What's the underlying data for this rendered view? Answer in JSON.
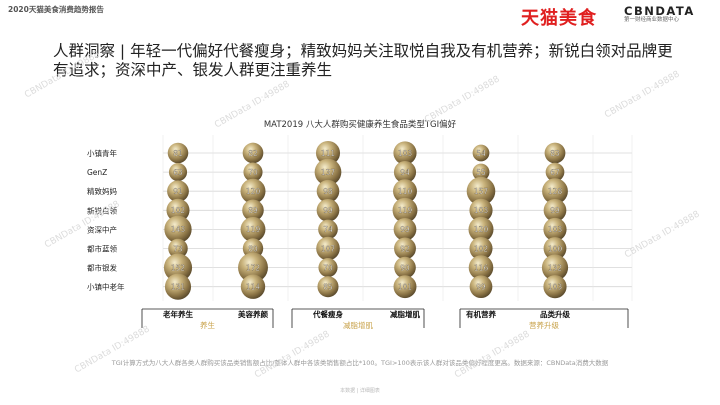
{
  "header": {
    "report_title": "2020天猫美食消费趋势报告",
    "brand_tmall": "天猫美食",
    "brand_cbn": "CBNDATA",
    "brand_cbn_sub": "第一财经商业数据中心"
  },
  "headline": "人群洞察 | 年轻一代偏好代餐瘦身；精致妈妈关注取悦自我及有机营养；新锐白领对品牌更有追求；资深中产、银发人群更注重养生",
  "chart_data": {
    "type": "bubble",
    "title": "MAT2019 八大人群购买健康养生食品类型TGI偏好",
    "categories": [
      "老年养生",
      "美容养颜",
      "代餐瘦身",
      "减脂增肌",
      "有机营养",
      "品类升级"
    ],
    "groups": [
      {
        "label": "养生",
        "categories": [
          "老年养生",
          "美容养颜"
        ]
      },
      {
        "label": "减脂增肌",
        "categories": [
          "代餐瘦身",
          "减脂增肌"
        ]
      },
      {
        "label": "营养升级",
        "categories": [
          "有机营养",
          "品类升级"
        ]
      }
    ],
    "series": [
      {
        "name": "小镇青年",
        "values": [
          81,
          82,
          111,
          103,
          54,
          83
        ]
      },
      {
        "name": "GenZ",
        "values": [
          63,
          70,
          137,
          94,
          55,
          67
        ]
      },
      {
        "name": "精致妈妈",
        "values": [
          91,
          120,
          98,
          110,
          157,
          128
        ]
      },
      {
        "name": "新锐白领",
        "values": [
          102,
          89,
          99,
          119,
          103,
          99
        ]
      },
      {
        "name": "资深中产",
        "values": [
          143,
          119,
          74,
          99,
          120,
          103
        ]
      },
      {
        "name": "都市蓝领",
        "values": [
          73,
          80,
          107,
          92,
          102,
          100
        ]
      },
      {
        "name": "都市银发",
        "values": [
          152,
          172,
          70,
          90,
          116,
          132
        ]
      },
      {
        "name": "小镇中老年",
        "values": [
          131,
          114,
          85,
          101,
          99,
          103
        ]
      }
    ],
    "grid": true
  },
  "footnote": "TGI计算方式为八大人群各类人群购买该品类销售额占比/整体人群中各该类销售额占比*100。TGI>100表示该人群对该品类偏好程度更高。数据来源：CBNData消费大数据",
  "page_footer": "本数据 | 详细图表",
  "watermark": "CBNData ID:49888"
}
